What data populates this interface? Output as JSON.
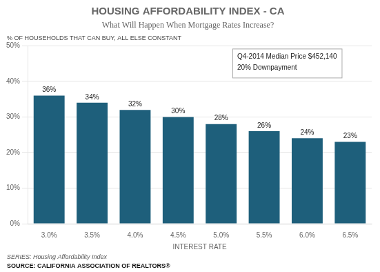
{
  "chart_data": {
    "type": "bar",
    "title": "HOUSING AFFORDABILITY INDEX - CA",
    "subtitle": "What Will Happen When Mortgage Rates Increase?",
    "ylabel": "% OF HOUSEHOLDS THAT CAN BUY, ALL ELSE CONSTANT",
    "xlabel": "INTEREST RATE",
    "categories": [
      "3.0%",
      "3.5%",
      "4.0%",
      "4.5%",
      "5.0%",
      "5.5%",
      "6.0%",
      "6.5%"
    ],
    "values": [
      36,
      34,
      32,
      30,
      28,
      26,
      24,
      23
    ],
    "value_labels": [
      "36%",
      "34%",
      "32%",
      "30%",
      "28%",
      "26%",
      "24%",
      "23%"
    ],
    "data_labels": true,
    "color": "#1e5f7b",
    "ylim": [
      0,
      50
    ],
    "yticks": [
      {
        "value": 0,
        "label": "0%"
      },
      {
        "value": 10,
        "label": "10%"
      },
      {
        "value": 20,
        "label": "20%"
      },
      {
        "value": 30,
        "label": "30%"
      },
      {
        "value": 40,
        "label": "40%"
      },
      {
        "value": 50,
        "label": "50%"
      }
    ],
    "grid": true,
    "annotations": [
      "Q4-2014 Median Price $452,140",
      "20% Downpayment"
    ],
    "footnotes": [
      "SERIES: Housing Affordability Index",
      "SOURCE: CALIFORNIA ASSOCIATION OF REALTORS®"
    ]
  }
}
